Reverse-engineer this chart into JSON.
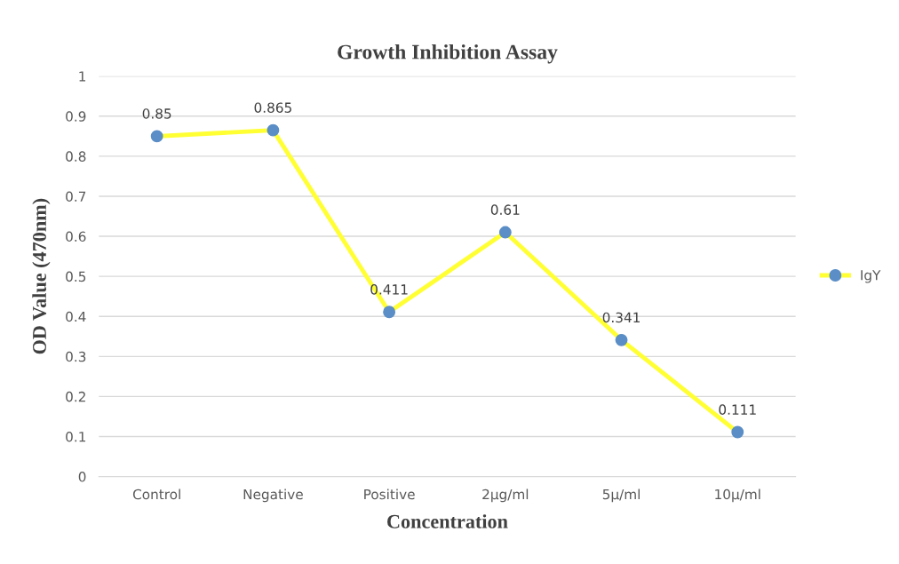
{
  "chart_data": {
    "type": "line",
    "title": "Growth Inhibition Assay",
    "xlabel": "Concentration",
    "ylabel": "OD Value (470nm)",
    "categories": [
      "Control",
      "Negative",
      "Positive",
      "2μg/ml",
      "5μ/ml",
      "10μ/ml"
    ],
    "series": [
      {
        "name": "IgY",
        "color": "#ffff33",
        "colors": [
          "#5b8ec6",
          "#5b8ec6",
          "#5b8ec6",
          "#5b8ec6",
          "#5b8ec6",
          "#5b8ec6"
        ],
        "values": [
          0.85,
          0.865,
          0.411,
          0.61,
          0.341,
          0.111
        ]
      }
    ],
    "ylim": [
      0,
      1
    ],
    "yticks": [
      0,
      0.1,
      0.2,
      0.3,
      0.4,
      0.5,
      0.6,
      0.7,
      0.8,
      0.9,
      1
    ],
    "grid": "y",
    "legend": "right",
    "marker": "circle",
    "line_style": "solid",
    "data_labels": true
  }
}
